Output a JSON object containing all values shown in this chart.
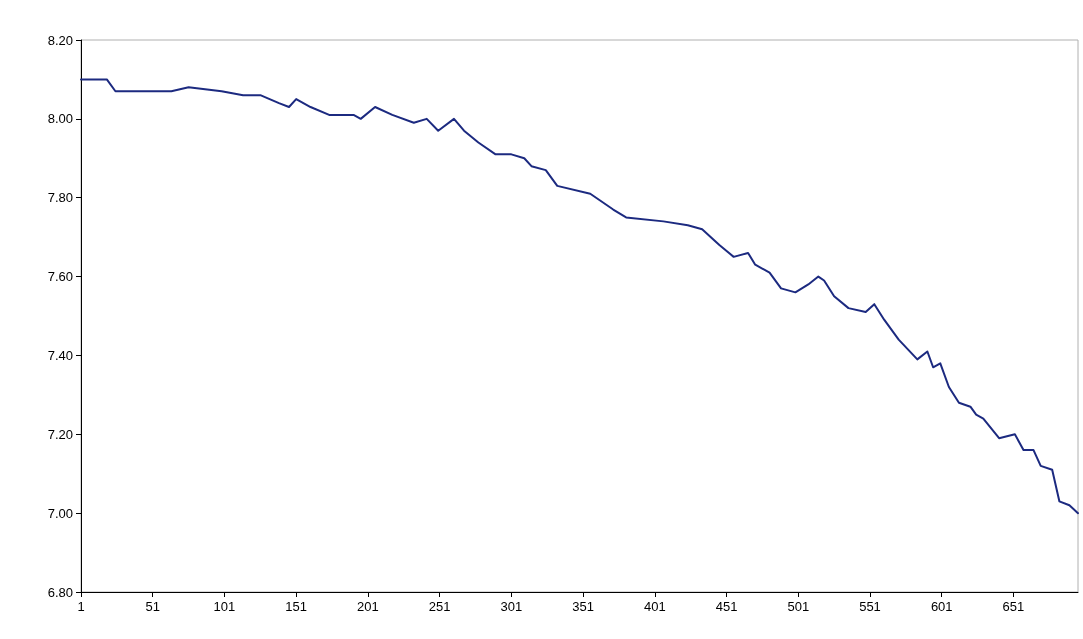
{
  "chart_data": {
    "type": "line",
    "marker": "none",
    "line_style": "solid",
    "x": [
      1,
      19,
      25,
      44,
      64,
      76,
      99,
      114,
      126,
      139,
      146,
      151,
      161,
      174,
      191,
      196,
      206,
      218,
      233,
      242,
      250,
      261,
      268,
      278,
      290,
      301,
      310,
      315,
      325,
      333,
      356,
      372,
      381,
      407,
      424,
      434,
      446,
      456,
      466,
      471,
      481,
      489,
      499,
      508,
      515,
      519,
      526,
      536,
      548,
      554,
      561,
      571,
      584,
      591,
      595,
      600,
      606,
      613,
      621,
      625,
      630,
      641,
      652,
      658,
      665,
      670,
      678,
      683,
      690,
      696
    ],
    "series": [
      {
        "color": "#1c2a80",
        "values": [
          8.1,
          8.1,
          8.07,
          8.07,
          8.07,
          8.08,
          8.07,
          8.06,
          8.06,
          8.04,
          8.03,
          8.05,
          8.03,
          8.01,
          8.01,
          8.0,
          8.03,
          8.01,
          7.99,
          8.0,
          7.97,
          8.0,
          7.97,
          7.94,
          7.91,
          7.91,
          7.9,
          7.88,
          7.87,
          7.83,
          7.81,
          7.77,
          7.75,
          7.74,
          7.73,
          7.72,
          7.68,
          7.65,
          7.66,
          7.63,
          7.61,
          7.57,
          7.56,
          7.58,
          7.6,
          7.59,
          7.55,
          7.52,
          7.51,
          7.53,
          7.49,
          7.44,
          7.39,
          7.41,
          7.37,
          7.38,
          7.32,
          7.28,
          7.27,
          7.25,
          7.24,
          7.19,
          7.2,
          7.16,
          7.16,
          7.12,
          7.11,
          7.03,
          7.02,
          7.0
        ]
      }
    ],
    "xlim": [
      1,
      696
    ],
    "xticks": [
      1,
      51,
      101,
      151,
      201,
      251,
      301,
      351,
      401,
      451,
      501,
      551,
      601,
      651
    ],
    "ylim": [
      6.8,
      8.2
    ],
    "yticks": [
      {
        "value": 6.8,
        "label": "6.80"
      },
      {
        "value": 7.0,
        "label": "7.00"
      },
      {
        "value": 7.2,
        "label": "7.20"
      },
      {
        "value": 7.4,
        "label": "7.40"
      },
      {
        "value": 7.6,
        "label": "7.60"
      },
      {
        "value": 7.8,
        "label": "7.80"
      },
      {
        "value": 8.0,
        "label": "8.00"
      },
      {
        "value": 8.2,
        "label": "8.20"
      }
    ]
  }
}
